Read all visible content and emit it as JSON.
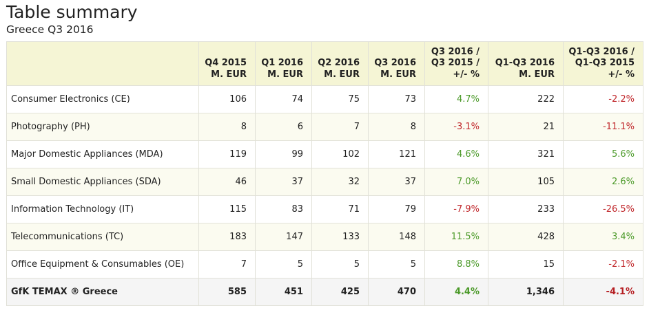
{
  "title": "Table summary",
  "subtitle": "Greece Q3 2016",
  "colors": {
    "positive": "#4c9a2a",
    "negative": "#c0262a",
    "header_bg": "#f5f5d5"
  },
  "table": {
    "headers": [
      {
        "lines": [
          "",
          "",
          ""
        ]
      },
      {
        "lines": [
          "",
          "Q4 2015",
          "M. EUR"
        ]
      },
      {
        "lines": [
          "",
          "Q1 2016",
          "M. EUR"
        ]
      },
      {
        "lines": [
          "",
          "Q2 2016",
          "M. EUR"
        ]
      },
      {
        "lines": [
          "",
          "Q3 2016",
          "M. EUR"
        ]
      },
      {
        "lines": [
          "Q3 2016 /",
          "Q3 2015 /",
          "+/- %"
        ]
      },
      {
        "lines": [
          "",
          "Q1-Q3 2016",
          "M. EUR"
        ]
      },
      {
        "lines": [
          "Q1-Q3 2016 /",
          "Q1-Q3 2015",
          "+/- %"
        ]
      }
    ],
    "rows": [
      {
        "category": "Consumer Electronics (CE)",
        "q4_2015": "106",
        "q1_2016": "74",
        "q2_2016": "75",
        "q3_2016": "73",
        "q3_change": "4.7%",
        "q3_change_sign": "pos",
        "q1q3_2016": "222",
        "q1q3_change": "-2.2%",
        "q1q3_change_sign": "neg"
      },
      {
        "category": "Photography (PH)",
        "q4_2015": "8",
        "q1_2016": "6",
        "q2_2016": "7",
        "q3_2016": "8",
        "q3_change": "-3.1%",
        "q3_change_sign": "neg",
        "q1q3_2016": "21",
        "q1q3_change": "-11.1%",
        "q1q3_change_sign": "neg"
      },
      {
        "category": "Major Domestic Appliances (MDA)",
        "q4_2015": "119",
        "q1_2016": "99",
        "q2_2016": "102",
        "q3_2016": "121",
        "q3_change": "4.6%",
        "q3_change_sign": "pos",
        "q1q3_2016": "321",
        "q1q3_change": "5.6%",
        "q1q3_change_sign": "pos"
      },
      {
        "category": "Small Domestic Appliances (SDA)",
        "q4_2015": "46",
        "q1_2016": "37",
        "q2_2016": "32",
        "q3_2016": "37",
        "q3_change": "7.0%",
        "q3_change_sign": "pos",
        "q1q3_2016": "105",
        "q1q3_change": "2.6%",
        "q1q3_change_sign": "pos"
      },
      {
        "category": "Information Technology (IT)",
        "q4_2015": "115",
        "q1_2016": "83",
        "q2_2016": "71",
        "q3_2016": "79",
        "q3_change": "-7.9%",
        "q3_change_sign": "neg",
        "q1q3_2016": "233",
        "q1q3_change": "-26.5%",
        "q1q3_change_sign": "neg"
      },
      {
        "category": "Telecommunications (TC)",
        "q4_2015": "183",
        "q1_2016": "147",
        "q2_2016": "133",
        "q3_2016": "148",
        "q3_change": "11.5%",
        "q3_change_sign": "pos",
        "q1q3_2016": "428",
        "q1q3_change": "3.4%",
        "q1q3_change_sign": "pos"
      },
      {
        "category": "Office Equipment & Consumables (OE)",
        "q4_2015": "7",
        "q1_2016": "5",
        "q2_2016": "5",
        "q3_2016": "5",
        "q3_change": "8.8%",
        "q3_change_sign": "pos",
        "q1q3_2016": "15",
        "q1q3_change": "-2.1%",
        "q1q3_change_sign": "neg"
      }
    ],
    "total": {
      "category": "GfK TEMAX ® Greece",
      "q4_2015": "585",
      "q1_2016": "451",
      "q2_2016": "425",
      "q3_2016": "470",
      "q3_change": "4.4%",
      "q3_change_sign": "pos",
      "q1q3_2016": "1,346",
      "q1q3_change": "-4.1%",
      "q1q3_change_sign": "neg"
    }
  }
}
